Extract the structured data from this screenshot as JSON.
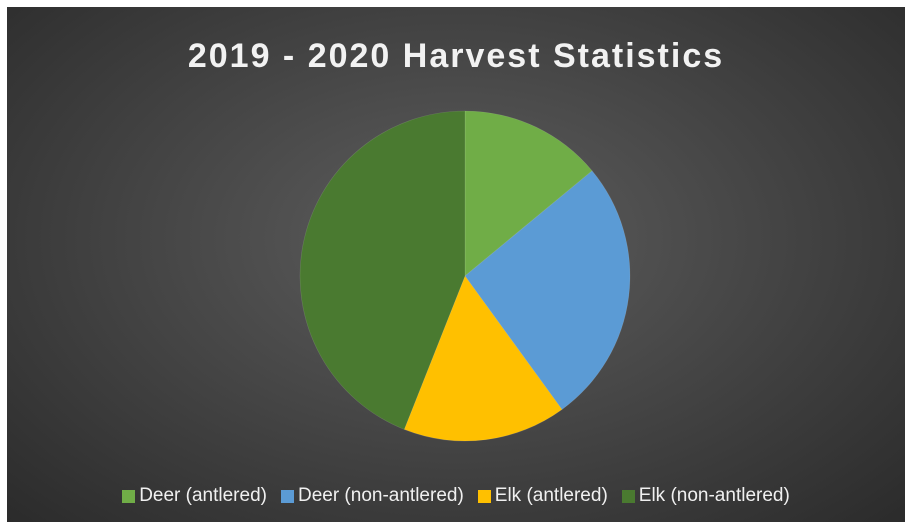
{
  "chart_data": {
    "type": "pie",
    "title": "2019 - 2020 Harvest Statistics",
    "categories": [
      "Deer (antlered)",
      "Deer (non-antlered)",
      "Elk (antlered)",
      "Elk (non-antlered)"
    ],
    "values": [
      14,
      26,
      16,
      44
    ],
    "colors": [
      "#70ad47",
      "#5b9bd5",
      "#ffc000",
      "#4a7a30"
    ],
    "legend_position": "bottom",
    "start_angle": "top, clockwise"
  }
}
